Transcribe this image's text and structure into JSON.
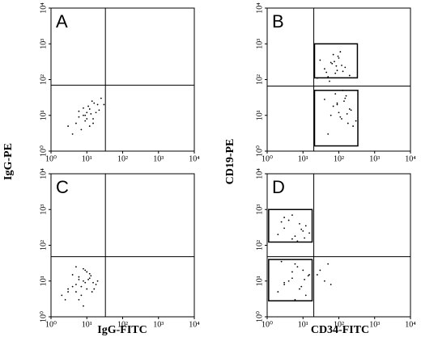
{
  "figure": {
    "y_labels": [
      "IgG-PE",
      "CD19-PE"
    ],
    "x_labels": [
      "IgG-FITC",
      "CD34-FITC"
    ]
  },
  "chart_data": [
    {
      "type": "scatter",
      "panel": "A",
      "log_x": true,
      "log_y": true,
      "color": "#000000",
      "xlim": [
        1,
        10000
      ],
      "ylim": [
        1,
        10000
      ],
      "xticks": [
        {
          "value": 1,
          "label": "10⁰"
        },
        {
          "value": 10,
          "label": "10¹"
        },
        {
          "value": 100,
          "label": "10²"
        },
        {
          "value": 1000,
          "label": "10³"
        },
        {
          "value": 10000,
          "label": "10⁴"
        }
      ],
      "yticks": [
        {
          "value": 1,
          "label": "10⁰"
        },
        {
          "value": 10,
          "label": "10¹"
        },
        {
          "value": 100,
          "label": "10²"
        },
        {
          "value": 1000,
          "label": "10³"
        },
        {
          "value": 10000,
          "label": "10⁴"
        }
      ],
      "quadrant": {
        "x": 33,
        "y": 70
      },
      "gates": [],
      "x": [
        5,
        8,
        12,
        15,
        20,
        7,
        10,
        14,
        3,
        6,
        9,
        11,
        18,
        25,
        4,
        13,
        16,
        22,
        8,
        10,
        6,
        12,
        30,
        9,
        15
      ],
      "y": [
        6,
        10,
        15,
        8,
        20,
        4,
        12,
        25,
        5,
        9,
        7,
        18,
        12,
        30,
        3,
        11,
        22,
        14,
        16,
        8,
        13,
        5,
        20,
        10,
        6
      ]
    },
    {
      "type": "scatter",
      "panel": "B",
      "log_x": true,
      "log_y": true,
      "color": "#000000",
      "xlim": [
        1,
        10000
      ],
      "ylim": [
        1,
        10000
      ],
      "xticks": [
        {
          "value": 1,
          "label": "10⁰"
        },
        {
          "value": 10,
          "label": "10¹"
        },
        {
          "value": 100,
          "label": "10²"
        },
        {
          "value": 1000,
          "label": "10³"
        },
        {
          "value": 10000,
          "label": "10⁴"
        }
      ],
      "yticks": [
        {
          "value": 1,
          "label": "10⁰"
        },
        {
          "value": 10,
          "label": "10¹"
        },
        {
          "value": 100,
          "label": "10²"
        },
        {
          "value": 1000,
          "label": "10³"
        },
        {
          "value": 10000,
          "label": "10⁴"
        }
      ],
      "quadrant": {
        "x": 20,
        "y": 66
      },
      "gates": [
        [
          21,
          330,
          112,
          1000
        ],
        [
          21,
          340,
          1.4,
          50
        ]
      ],
      "x": [
        40,
        60,
        80,
        100,
        120,
        50,
        70,
        90,
        150,
        30,
        45,
        65,
        200,
        110,
        85,
        55,
        25,
        75,
        130,
        95,
        60,
        90,
        120,
        150,
        200,
        250,
        80,
        100,
        140,
        180,
        70,
        110,
        160,
        220,
        300,
        130,
        90,
        170,
        50,
        40
      ],
      "y": [
        200,
        300,
        150,
        400,
        250,
        120,
        500,
        180,
        220,
        350,
        160,
        280,
        130,
        600,
        240,
        90,
        110,
        320,
        170,
        450,
        10,
        20,
        8,
        30,
        15,
        5,
        40,
        12,
        25,
        6,
        18,
        9,
        35,
        14,
        7,
        50,
        22,
        11,
        3,
        28
      ]
    },
    {
      "type": "scatter",
      "panel": "C",
      "log_x": true,
      "log_y": true,
      "color": "#000000",
      "xlim": [
        1,
        10000
      ],
      "ylim": [
        1,
        10000
      ],
      "xticks": [
        {
          "value": 1,
          "label": "10⁰"
        },
        {
          "value": 10,
          "label": "10¹"
        },
        {
          "value": 100,
          "label": "10²"
        },
        {
          "value": 1000,
          "label": "10³"
        },
        {
          "value": 10000,
          "label": "10⁴"
        }
      ],
      "yticks": [
        {
          "value": 1,
          "label": "10⁰"
        },
        {
          "value": 10,
          "label": "10¹"
        },
        {
          "value": 100,
          "label": "10²"
        },
        {
          "value": 1000,
          "label": "10³"
        },
        {
          "value": 10000,
          "label": "10⁴"
        }
      ],
      "quadrant": {
        "x": 33,
        "y": 48
      },
      "gates": [],
      "x": [
        3,
        5,
        8,
        10,
        12,
        6,
        4,
        7,
        9,
        15,
        2,
        11,
        14,
        5,
        8,
        18,
        6,
        3,
        10,
        20,
        7,
        9,
        4,
        13,
        2.5,
        6,
        12,
        16,
        8,
        5
      ],
      "y": [
        5,
        8,
        10,
        6,
        12,
        3,
        15,
        7,
        20,
        9,
        4,
        11,
        5,
        25,
        2,
        8,
        13,
        6,
        18,
        10,
        4,
        9,
        7,
        14,
        3,
        11,
        16,
        6,
        22,
        5
      ]
    },
    {
      "type": "scatter",
      "panel": "D",
      "log_x": true,
      "log_y": true,
      "color": "#000000",
      "xlim": [
        1,
        10000
      ],
      "ylim": [
        1,
        10000
      ],
      "xticks": [
        {
          "value": 1,
          "label": "10⁰"
        },
        {
          "value": 10,
          "label": "10¹"
        },
        {
          "value": 100,
          "label": "10²"
        },
        {
          "value": 1000,
          "label": "10³"
        },
        {
          "value": 10000,
          "label": "10⁴"
        }
      ],
      "yticks": [
        {
          "value": 1,
          "label": "10⁰"
        },
        {
          "value": 10,
          "label": "10¹"
        },
        {
          "value": 100,
          "label": "10²"
        },
        {
          "value": 1000,
          "label": "10³"
        },
        {
          "value": 10000,
          "label": "10⁴"
        }
      ],
      "quadrant": {
        "x": 20,
        "y": 48
      },
      "gates": [
        [
          1.1,
          18,
          123,
          1000
        ],
        [
          1.1,
          18,
          2.8,
          40
        ]
      ],
      "x": [
        2,
        3,
        5,
        8,
        10,
        4,
        6,
        12,
        15,
        3,
        7,
        9,
        2.5,
        5,
        11,
        2,
        3,
        5,
        8,
        10,
        4,
        6,
        12,
        15,
        3,
        7,
        9,
        2.5,
        5,
        11,
        14,
        6,
        30,
        40,
        50,
        25,
        60
      ],
      "y": [
        200,
        300,
        150,
        400,
        250,
        500,
        180,
        350,
        220,
        600,
        130,
        280,
        450,
        700,
        160,
        5,
        8,
        12,
        6,
        20,
        10,
        30,
        4,
        15,
        9,
        25,
        7,
        35,
        18,
        11,
        14,
        3,
        20,
        10,
        30,
        15,
        8
      ]
    }
  ]
}
